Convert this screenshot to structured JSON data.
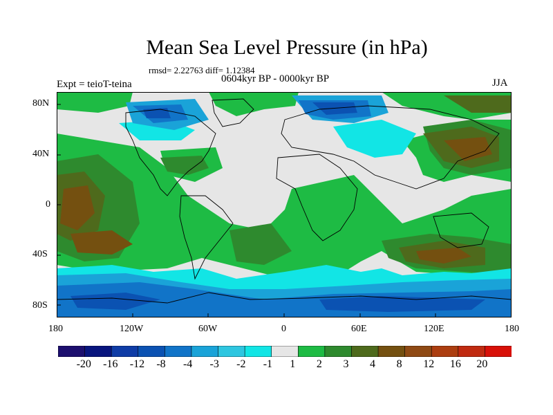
{
  "title": "Mean Sea Level Pressure (in hPa)",
  "stats_text": "rmsd= 2.22763 diff= 1.12384",
  "period": "0604kyr BP - 0000kyr BP",
  "experiment": "Expt = teioT-teina",
  "season": "JJA",
  "lat_labels": [
    "80N",
    "40N",
    "0",
    "40S",
    "80S"
  ],
  "lon_labels": [
    "180",
    "120W",
    "60W",
    "0",
    "60E",
    "120E",
    "180"
  ],
  "colorbar": {
    "colors": [
      "#1c0f6e",
      "#08157e",
      "#0f3ca6",
      "#0b52b2",
      "#1174c8",
      "#1aa3d8",
      "#2ec6e0",
      "#12e5e5",
      "#e6e6e6",
      "#1ebb44",
      "#2e8a2e",
      "#4e6a1c",
      "#745010",
      "#8f4a14",
      "#ac3e10",
      "#c02a10",
      "#d81008"
    ],
    "tick_labels": [
      "-20",
      "-16",
      "-12",
      "-8",
      "-4",
      "-3",
      "-2",
      "-1",
      "1",
      "2",
      "3",
      "4",
      "8",
      "12",
      "16",
      "20"
    ]
  }
}
